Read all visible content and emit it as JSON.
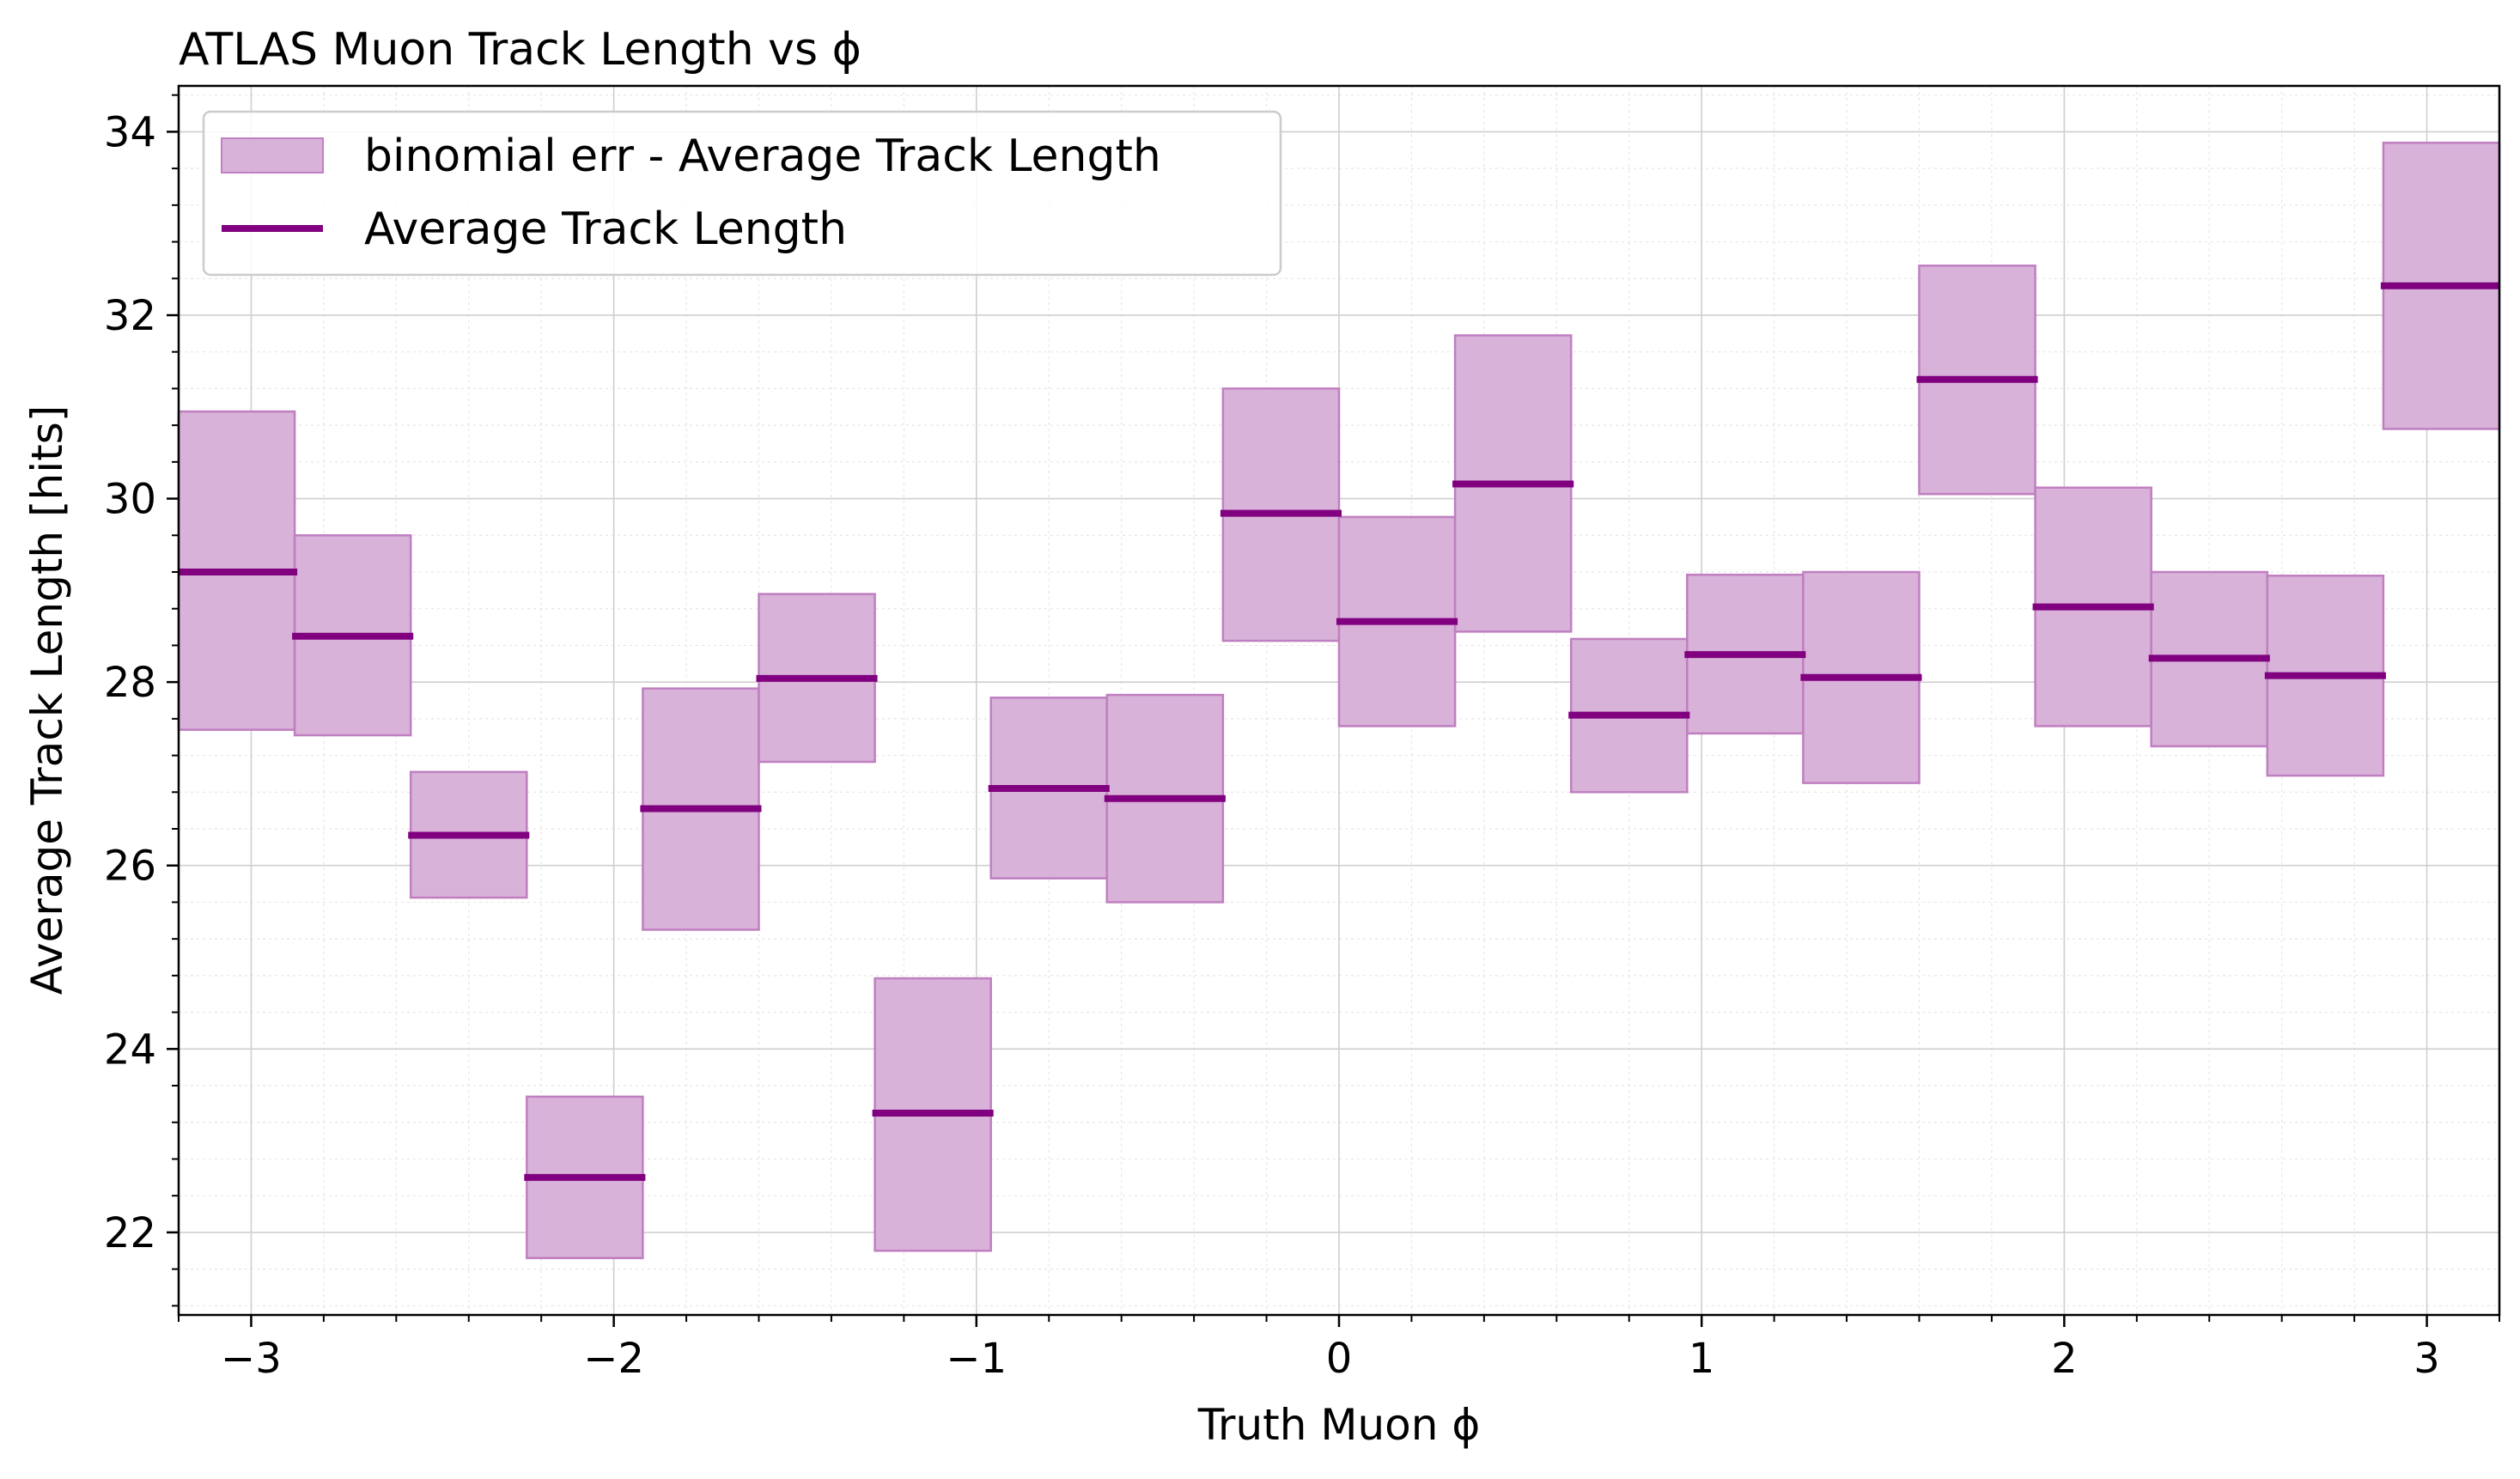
{
  "chart_data": {
    "type": "bar",
    "title": "ATLAS Muon Track Length vs ϕ",
    "xlabel": "Truth Muon ϕ",
    "ylabel": "Average Track Length [hits]",
    "xlim": [
      -3.2,
      3.2
    ],
    "ylim": [
      21.1,
      34.5
    ],
    "xticks": [
      -3,
      -2,
      -1,
      0,
      1,
      2,
      3
    ],
    "xtick_labels": [
      "−3",
      "−2",
      "−1",
      "0",
      "1",
      "2",
      "3"
    ],
    "yticks": [
      22,
      24,
      26,
      28,
      30,
      32,
      34
    ],
    "ytick_labels": [
      "22",
      "24",
      "26",
      "28",
      "30",
      "32",
      "34"
    ],
    "grid": true,
    "legend_position": "top-left",
    "colors": {
      "line": "#800080",
      "band_fill": "#d8b2d8",
      "band_edge": "#c07fc0"
    },
    "series": [
      {
        "name": "binomial err - Average Track Length",
        "kind": "error-band"
      },
      {
        "name": "Average Track Length",
        "kind": "step-line"
      }
    ],
    "bins": [
      {
        "x0": -3.2,
        "x1": -2.88,
        "value": 29.2,
        "err_low": 27.48,
        "err_high": 30.95
      },
      {
        "x0": -2.88,
        "x1": -2.56,
        "value": 28.5,
        "err_low": 27.42,
        "err_high": 29.6
      },
      {
        "x0": -2.56,
        "x1": -2.24,
        "value": 26.33,
        "err_low": 25.65,
        "err_high": 27.02
      },
      {
        "x0": -2.24,
        "x1": -1.92,
        "value": 22.6,
        "err_low": 21.72,
        "err_high": 23.48
      },
      {
        "x0": -1.92,
        "x1": -1.6,
        "value": 26.62,
        "err_low": 25.3,
        "err_high": 27.93
      },
      {
        "x0": -1.6,
        "x1": -1.28,
        "value": 28.04,
        "err_low": 27.13,
        "err_high": 28.96
      },
      {
        "x0": -1.28,
        "x1": -0.96,
        "value": 23.3,
        "err_low": 21.8,
        "err_high": 24.77
      },
      {
        "x0": -0.96,
        "x1": -0.64,
        "value": 26.84,
        "err_low": 25.86,
        "err_high": 27.83
      },
      {
        "x0": -0.64,
        "x1": -0.32,
        "value": 26.73,
        "err_low": 25.6,
        "err_high": 27.86
      },
      {
        "x0": -0.32,
        "x1": 0.0,
        "value": 29.84,
        "err_low": 28.45,
        "err_high": 31.2
      },
      {
        "x0": 0.0,
        "x1": 0.32,
        "value": 28.66,
        "err_low": 27.52,
        "err_high": 29.8
      },
      {
        "x0": 0.32,
        "x1": 0.64,
        "value": 30.16,
        "err_low": 28.55,
        "err_high": 31.78
      },
      {
        "x0": 0.64,
        "x1": 0.96,
        "value": 27.64,
        "err_low": 26.8,
        "err_high": 28.47
      },
      {
        "x0": 0.96,
        "x1": 1.28,
        "value": 28.3,
        "err_low": 27.44,
        "err_high": 29.17
      },
      {
        "x0": 1.28,
        "x1": 1.6,
        "value": 28.05,
        "err_low": 26.9,
        "err_high": 29.2
      },
      {
        "x0": 1.6,
        "x1": 1.92,
        "value": 31.3,
        "err_low": 30.05,
        "err_high": 32.54
      },
      {
        "x0": 1.92,
        "x1": 2.24,
        "value": 28.82,
        "err_low": 27.52,
        "err_high": 30.12
      },
      {
        "x0": 2.24,
        "x1": 2.56,
        "value": 28.26,
        "err_low": 27.3,
        "err_high": 29.2
      },
      {
        "x0": 2.56,
        "x1": 2.88,
        "value": 28.07,
        "err_low": 26.98,
        "err_high": 29.16
      },
      {
        "x0": 2.88,
        "x1": 3.2,
        "value": 32.32,
        "err_low": 30.76,
        "err_high": 33.88
      }
    ]
  }
}
